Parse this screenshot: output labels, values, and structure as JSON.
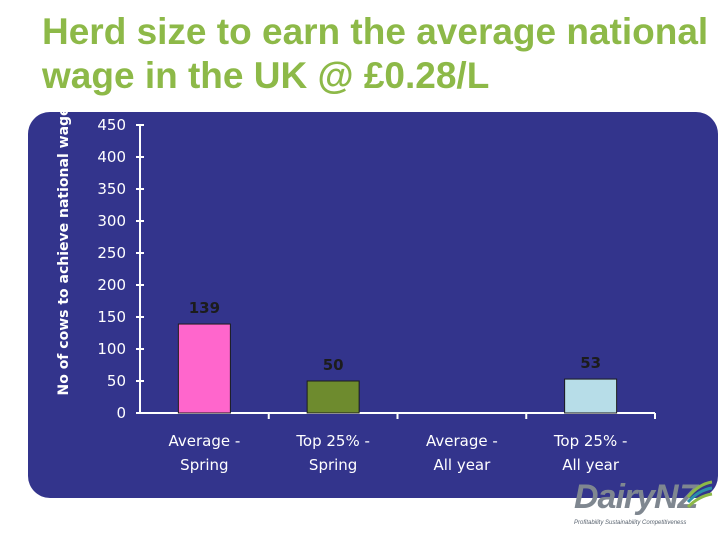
{
  "slide": {
    "title": "Herd size to earn the average national wage in the UK @ £0.28/L"
  },
  "chart_data": {
    "type": "bar",
    "title": "",
    "ylabel": "No of cows to achieve national wage",
    "xlabel": "",
    "ylim": [
      0,
      450
    ],
    "yticks": [
      "0",
      "50",
      "100",
      "150",
      "200",
      "250",
      "300",
      "350",
      "400",
      "450"
    ],
    "categories": [
      "Average - Spring",
      "Top 25% - Spring",
      "Average - All year",
      "Top 25% - All year"
    ],
    "values": [
      139,
      50,
      null,
      53
    ],
    "data_labels": [
      "139",
      "50",
      "",
      "53"
    ],
    "colors": [
      "#ff66cc",
      "#6e8b2e",
      "#33348c",
      "#b7dde8"
    ],
    "grid": false,
    "legend": "none"
  },
  "logo": {
    "brand": "DairyNZ",
    "tagline": "Profitability Sustainability Competitiveness",
    "colors": [
      "#7f8790",
      "#2a8fa8",
      "#8db948"
    ]
  }
}
